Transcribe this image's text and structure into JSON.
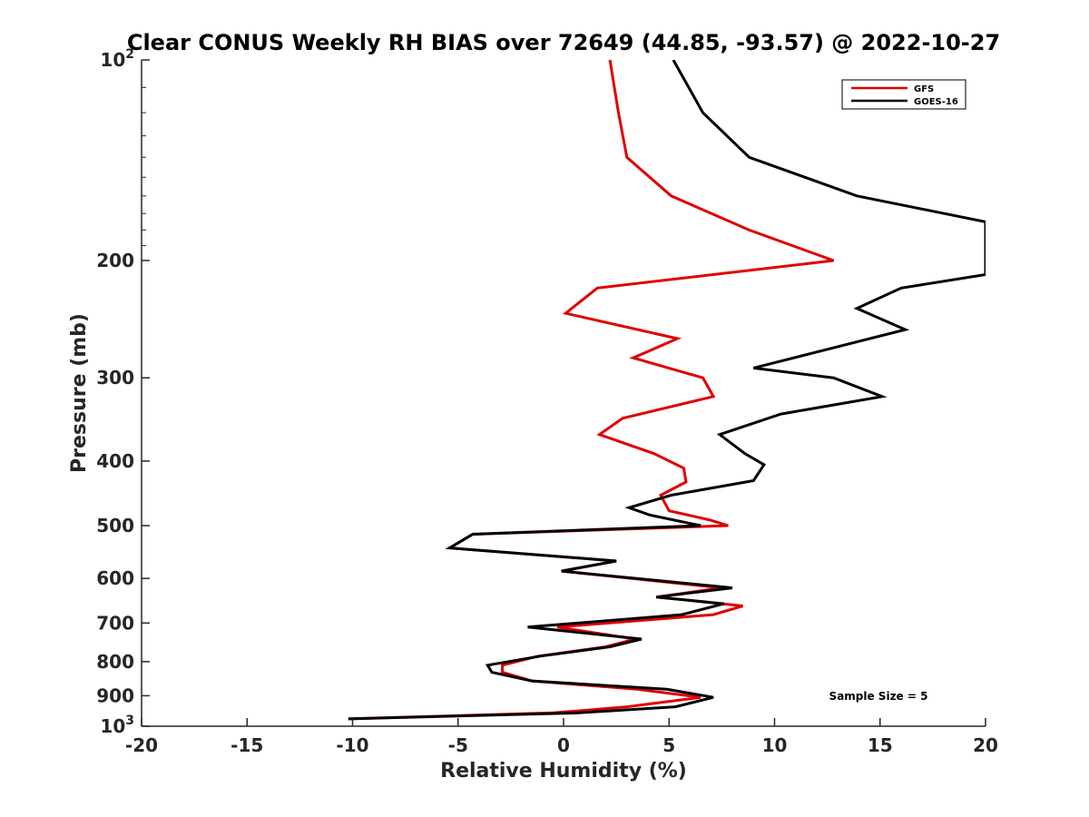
{
  "chart_data": {
    "type": "line",
    "title": "Clear CONUS Weekly RH BIAS over 72649 (44.85, -93.57) @ 2022-10-27",
    "xlabel": "Relative Humidity (%)",
    "ylabel": "Pressure (mb)",
    "xlim": [
      -20,
      20
    ],
    "ylim": [
      100,
      1000
    ],
    "y_scale": "log",
    "y_reversed": true,
    "grid": false,
    "legend_position": "top-right",
    "x_ticks": [
      "-20",
      "-15",
      "-10",
      "-5",
      "0",
      "5",
      "10",
      "15",
      "20"
    ],
    "y_ticks": [
      {
        "value": 100,
        "base": "10",
        "exp": "2"
      },
      {
        "value": 200,
        "label": "200"
      },
      {
        "value": 300,
        "label": "300"
      },
      {
        "value": 400,
        "label": "400"
      },
      {
        "value": 500,
        "label": "500"
      },
      {
        "value": 600,
        "label": "600"
      },
      {
        "value": 700,
        "label": "700"
      },
      {
        "value": 800,
        "label": "800"
      },
      {
        "value": 900,
        "label": "900"
      },
      {
        "value": 1000,
        "base": "10",
        "exp": "3"
      }
    ],
    "series": [
      {
        "name": "GFS",
        "color": "#e00000",
        "points": [
          [
            2.2,
            100
          ],
          [
            2.6,
            120
          ],
          [
            3.0,
            140
          ],
          [
            5.1,
            160
          ],
          [
            8.8,
            180
          ],
          [
            12.8,
            200
          ],
          [
            1.6,
            220
          ],
          [
            0.1,
            240
          ],
          [
            5.4,
            262
          ],
          [
            3.3,
            280
          ],
          [
            6.6,
            300
          ],
          [
            7.1,
            320
          ],
          [
            2.8,
            345
          ],
          [
            1.7,
            365
          ],
          [
            4.3,
            390
          ],
          [
            5.7,
            410
          ],
          [
            5.8,
            430
          ],
          [
            4.6,
            450
          ],
          [
            5.0,
            475
          ],
          [
            6.9,
            490
          ],
          [
            7.8,
            500
          ],
          [
            -4.3,
            515
          ],
          [
            -5.4,
            540
          ],
          [
            2.5,
            565
          ],
          [
            -0.1,
            585
          ],
          [
            7.5,
            620
          ],
          [
            4.4,
            640
          ],
          [
            8.5,
            660
          ],
          [
            7.1,
            680
          ],
          [
            -0.3,
            710
          ],
          [
            3.4,
            740
          ],
          [
            2.0,
            760
          ],
          [
            -1.2,
            785
          ],
          [
            -2.9,
            810
          ],
          [
            -2.9,
            830
          ],
          [
            -1.5,
            855
          ],
          [
            3.5,
            880
          ],
          [
            6.5,
            905
          ],
          [
            3.0,
            935
          ],
          [
            -0.5,
            955
          ],
          [
            -10.2,
            975
          ]
        ]
      },
      {
        "name": "GOES-16",
        "color": "#000000",
        "points": [
          [
            5.2,
            100
          ],
          [
            6.6,
            120
          ],
          [
            8.8,
            140
          ],
          [
            13.9,
            160
          ],
          [
            20.0,
            175
          ],
          [
            20.0,
            210
          ],
          [
            16.0,
            220
          ],
          [
            13.9,
            236
          ],
          [
            16.2,
            254
          ],
          [
            9.0,
            290
          ],
          [
            12.8,
            300
          ],
          [
            15.1,
            320
          ],
          [
            10.3,
            340
          ],
          [
            7.4,
            365
          ],
          [
            8.6,
            390
          ],
          [
            9.5,
            405
          ],
          [
            9.0,
            428
          ],
          [
            5.1,
            450
          ],
          [
            3.1,
            470
          ],
          [
            4.1,
            482
          ],
          [
            6.5,
            500
          ],
          [
            -4.3,
            515
          ],
          [
            -5.4,
            540
          ],
          [
            2.5,
            565
          ],
          [
            -0.1,
            585
          ],
          [
            8.0,
            620
          ],
          [
            4.4,
            640
          ],
          [
            7.6,
            655
          ],
          [
            5.6,
            680
          ],
          [
            -1.7,
            710
          ],
          [
            3.7,
            740
          ],
          [
            2.2,
            760
          ],
          [
            -1.1,
            785
          ],
          [
            -3.6,
            810
          ],
          [
            -3.4,
            830
          ],
          [
            -1.5,
            855
          ],
          [
            4.9,
            880
          ],
          [
            7.1,
            905
          ],
          [
            5.3,
            935
          ],
          [
            0.7,
            955
          ],
          [
            -10.2,
            975
          ]
        ]
      }
    ],
    "legend": [
      {
        "label": "GFS",
        "color": "#e00000"
      },
      {
        "label": "GOES-16",
        "color": "#000000"
      }
    ],
    "annotation": "Sample Size = 5"
  }
}
